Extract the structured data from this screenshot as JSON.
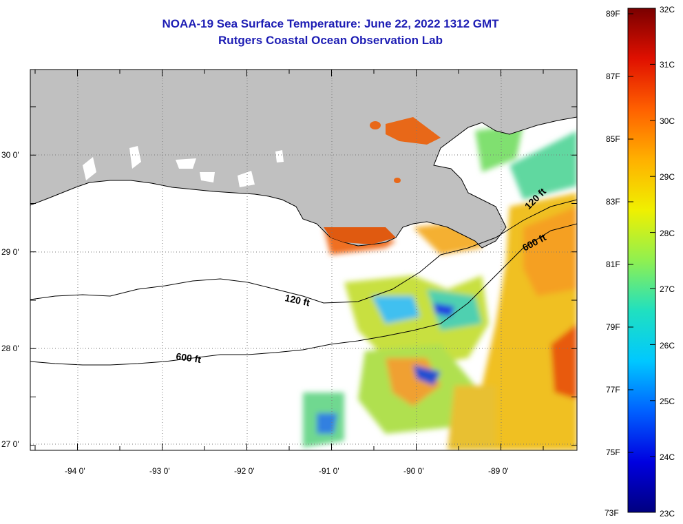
{
  "title": {
    "line1": "NOAA-19 Sea Surface Temperature:  June 22, 2022 1312 GMT",
    "line2": "Rutgers Coastal Ocean Observation Lab"
  },
  "axes": {
    "lat_labels": [
      "30 0'",
      "29 0'",
      "28 0'",
      "27 0'"
    ],
    "lon_labels": [
      "-94 0'",
      "-93 0'",
      "-92 0'",
      "-91 0'",
      "-90 0'",
      "-89 0'"
    ]
  },
  "contours": {
    "label_120_west": "120 ft",
    "label_600_west": "600 ft",
    "label_120_east": "120 ft",
    "label_600_east": "600 ft"
  },
  "colorbar": {
    "fahrenheit_labels": [
      "89F",
      "87F",
      "85F",
      "83F",
      "81F",
      "79F",
      "77F",
      "75F",
      "73F"
    ],
    "celsius_labels": [
      "32C",
      "31C",
      "30C",
      "29C",
      "28C",
      "27C",
      "26C",
      "25C",
      "24C",
      "23C"
    ]
  },
  "colors": {
    "title": "#1d1db4",
    "land": "#c0c0c0",
    "water_no_data": "#ffffff",
    "warm": "#e05010",
    "cool": "#1030d0"
  }
}
